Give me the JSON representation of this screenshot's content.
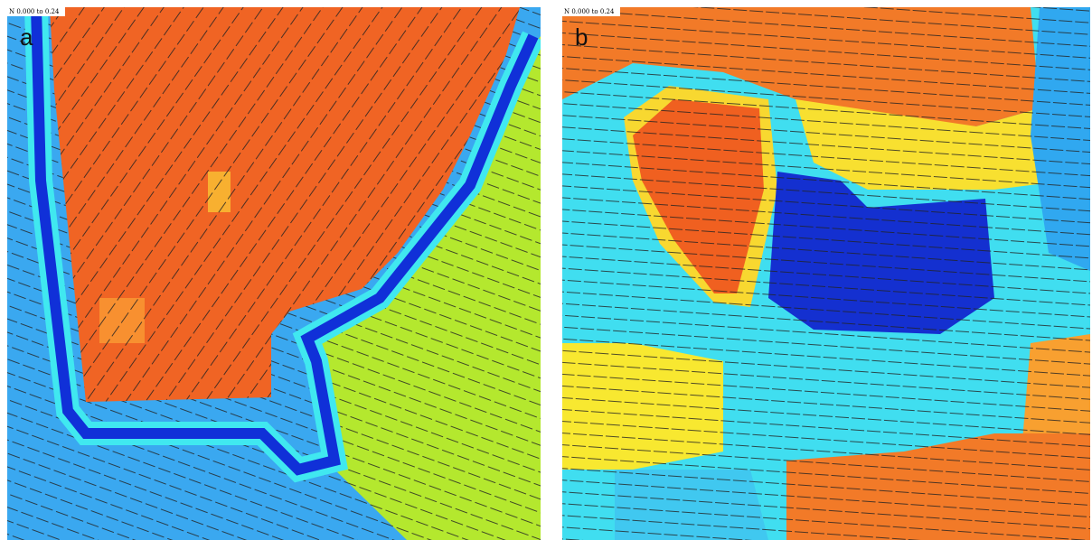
{
  "panels": [
    {
      "label": "a",
      "scale": "N 0.000 to 0.24"
    },
    {
      "label": "b",
      "scale": "N 0.000 to 0.24"
    }
  ]
}
